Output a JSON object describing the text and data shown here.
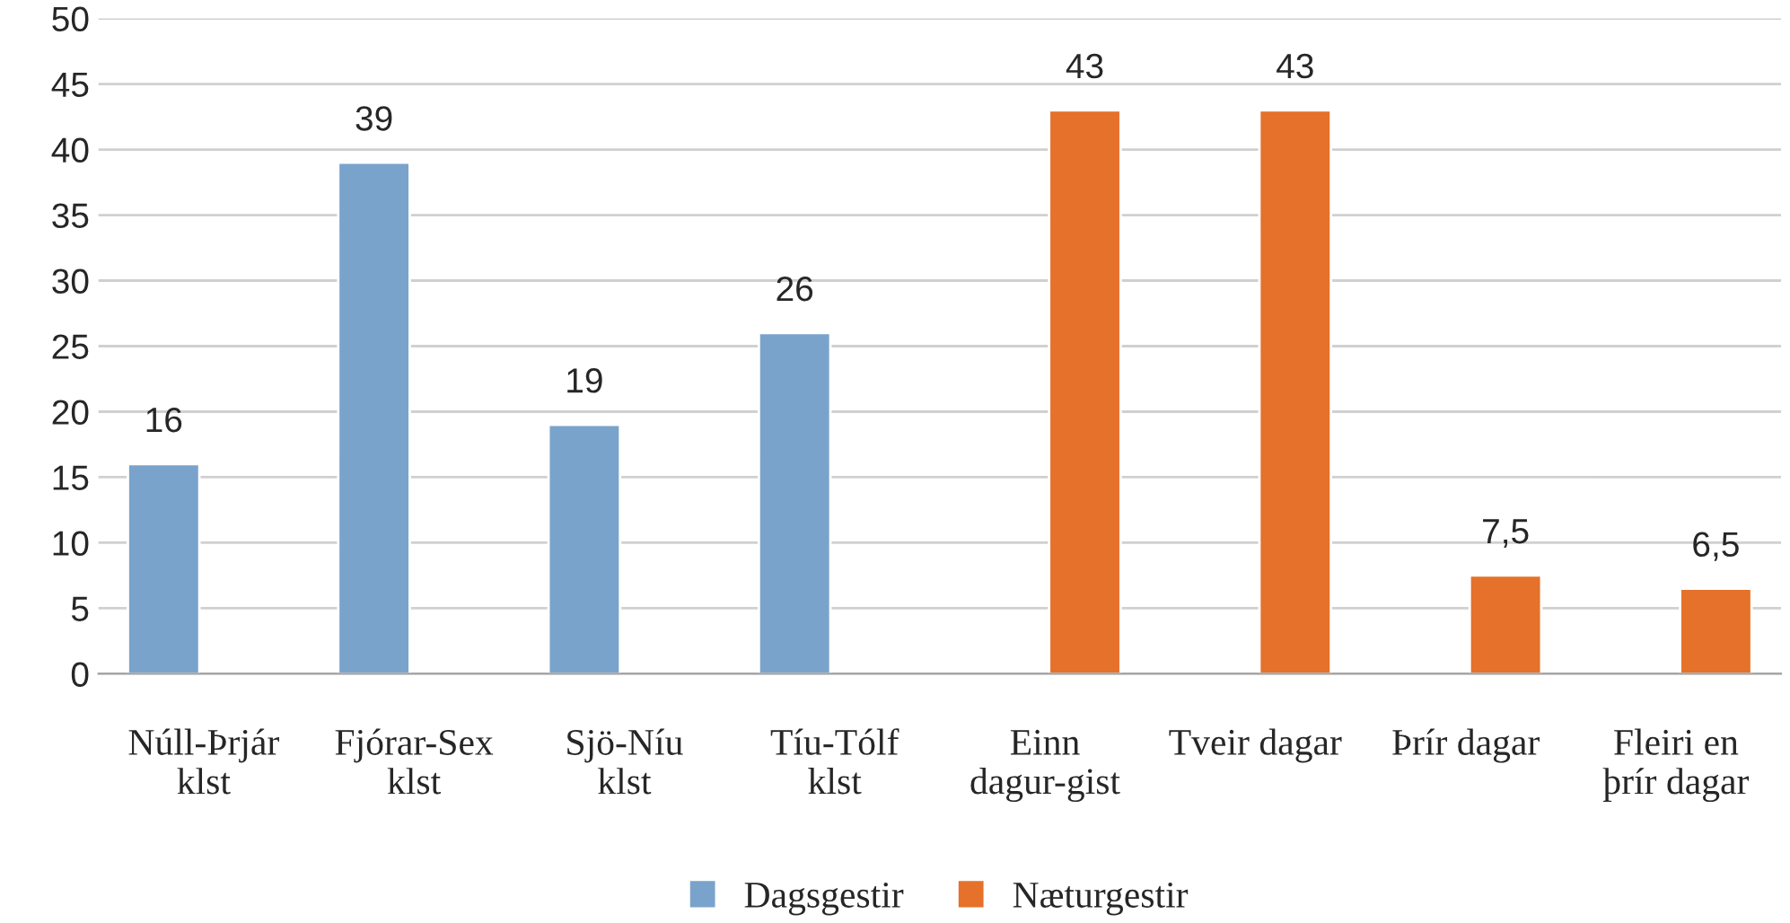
{
  "chart_data": {
    "type": "bar",
    "categories": [
      "Núll-Þrjár\nklst",
      "Fjórar-Sex\nklst",
      "Sjö-Níu\nklst",
      "Tíu-Tólf\nklst",
      "Einn\ndagur-gist",
      "Tveir dagar",
      "Þrír dagar",
      "Fleiri en\nþrír dagar"
    ],
    "series": [
      {
        "name": "Dagsgestir",
        "color": "#7aa3cc",
        "values": [
          16,
          39,
          19,
          26,
          null,
          null,
          null,
          null
        ],
        "value_labels": [
          "16",
          "39",
          "19",
          "26",
          null,
          null,
          null,
          null
        ]
      },
      {
        "name": "Næturgestir",
        "color": "#e5712a",
        "values": [
          null,
          null,
          null,
          null,
          43,
          43,
          7.5,
          6.5
        ],
        "value_labels": [
          null,
          null,
          null,
          null,
          "43",
          "43",
          "7,5",
          "6,5"
        ]
      }
    ],
    "ylim": [
      0,
      50
    ],
    "yticks": [
      0,
      5,
      10,
      15,
      20,
      25,
      30,
      35,
      40,
      45,
      50
    ],
    "grid": "y",
    "legend": "bottom"
  }
}
